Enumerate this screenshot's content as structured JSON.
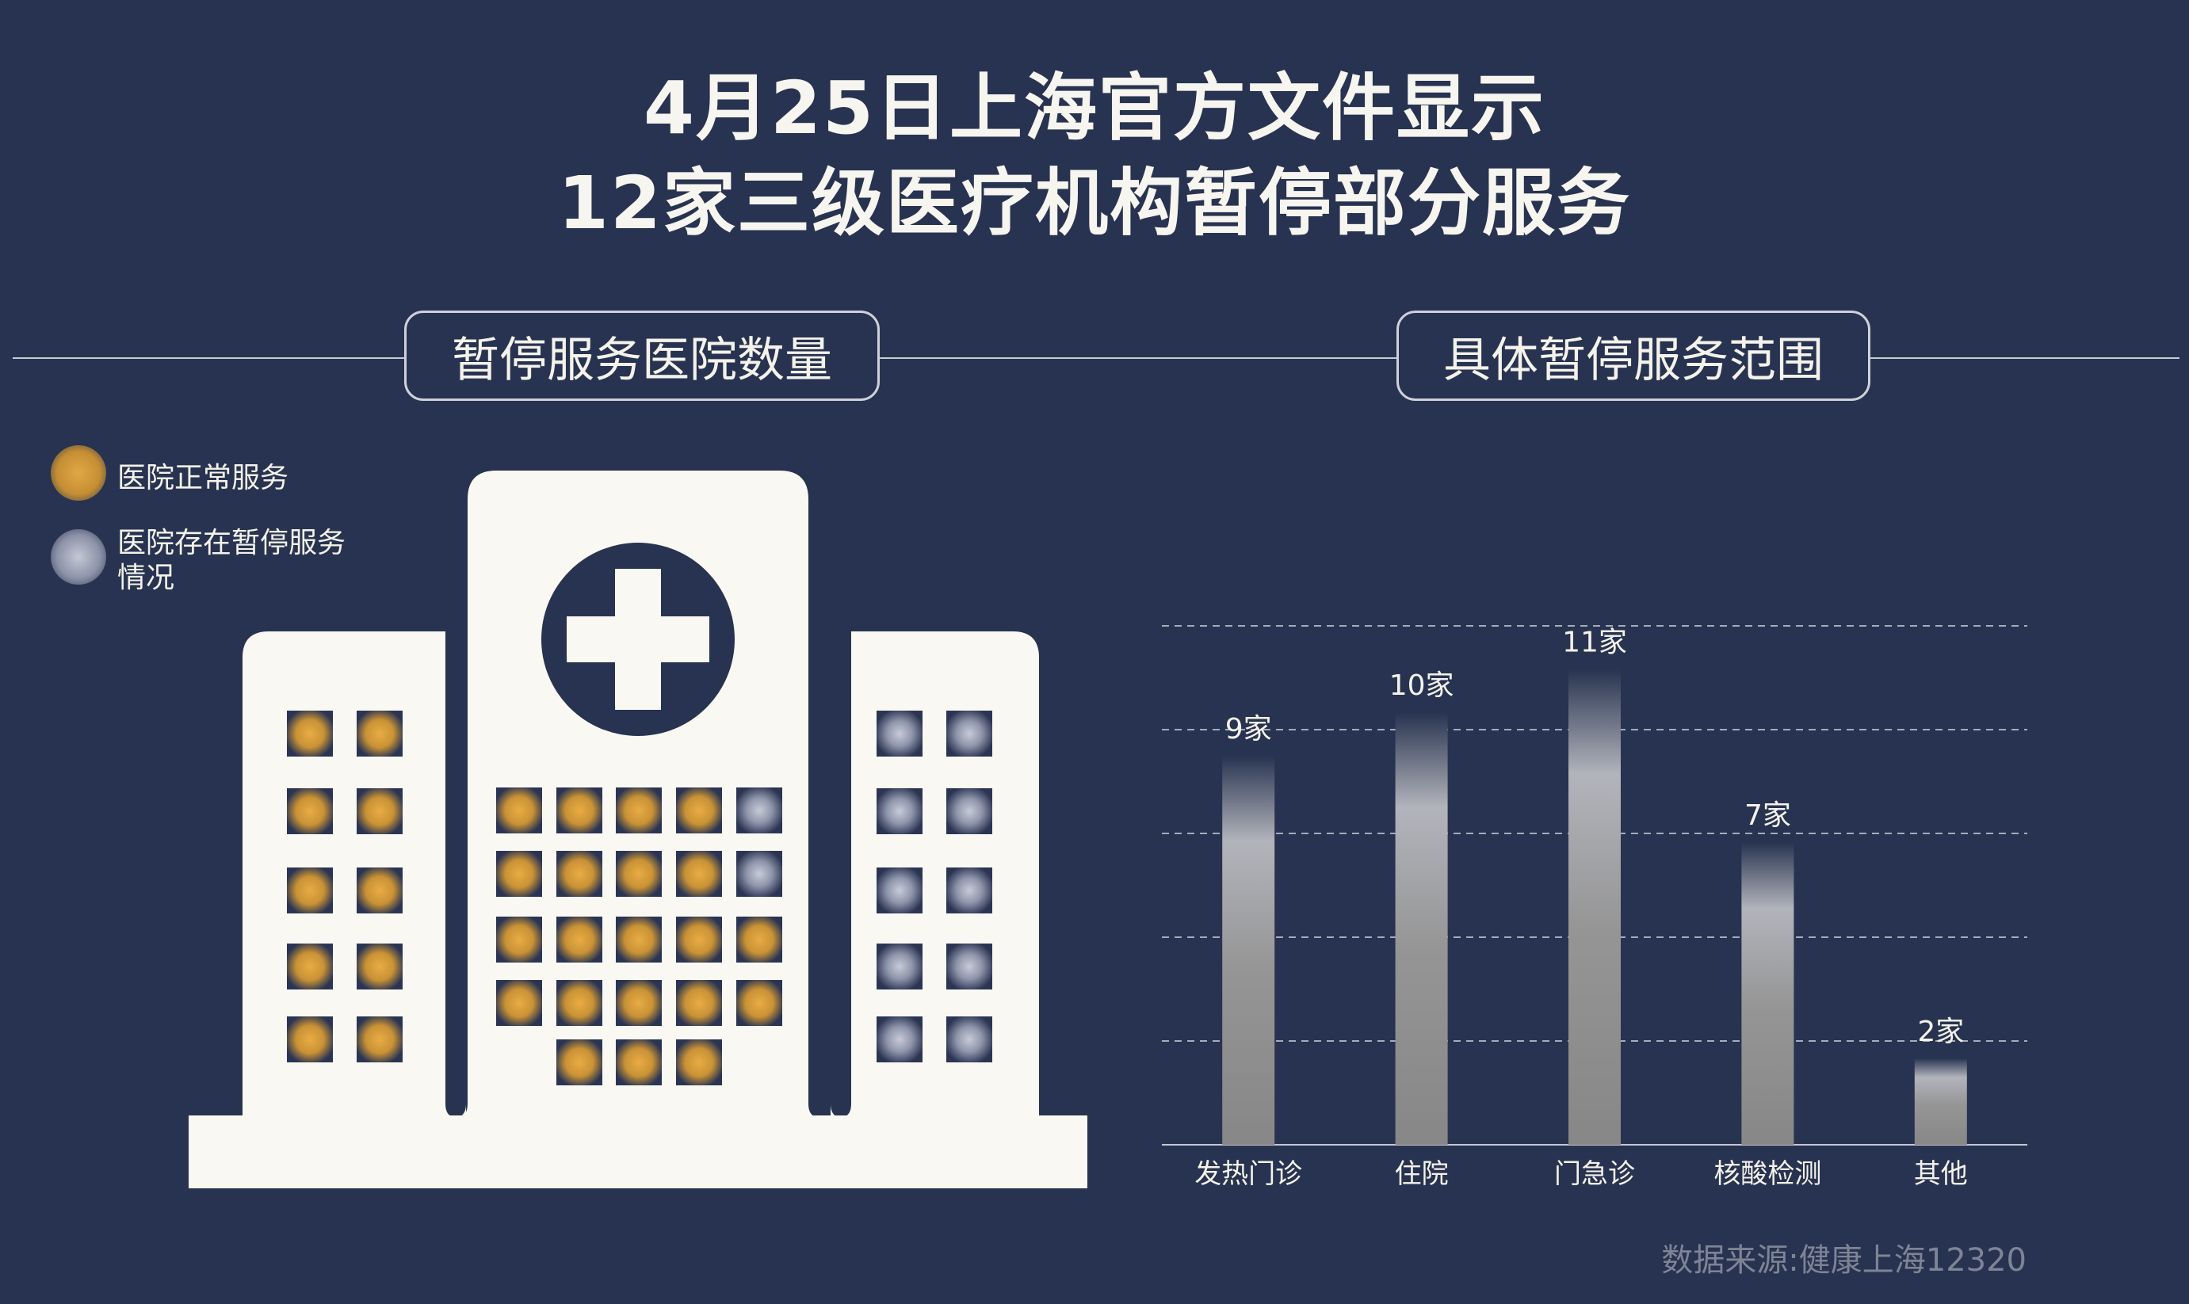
{
  "title": {
    "line1": "4月25日上海官方文件显示",
    "line2": "12家三级医疗机构暂停部分服务"
  },
  "sections": {
    "left": "暂停服务医院数量",
    "right": "具体暂停服务范围"
  },
  "legend": {
    "normal": "医院正常服务",
    "suspended": "医院存在暂停服务情况"
  },
  "colors": {
    "background": "#273350",
    "building": "#f9f8f2",
    "normal_window": "#d39b3a",
    "suspended_window": "#9aa0b4",
    "bar": "#8a8a8a"
  },
  "hospital_windows": {
    "normal_count": 27,
    "suspended_count": 12
  },
  "chart_data": {
    "type": "bar",
    "categories": [
      "发热门诊",
      "住院",
      "门急诊",
      "核酸检测",
      "其他"
    ],
    "values": [
      9,
      10,
      11,
      7,
      2
    ],
    "value_labels": [
      "9家",
      "10家",
      "11家",
      "7家",
      "2家"
    ],
    "ylim": [
      0,
      12
    ],
    "grid": true,
    "title": "",
    "xlabel": "",
    "ylabel": ""
  },
  "source": "数据来源:健康上海12320"
}
